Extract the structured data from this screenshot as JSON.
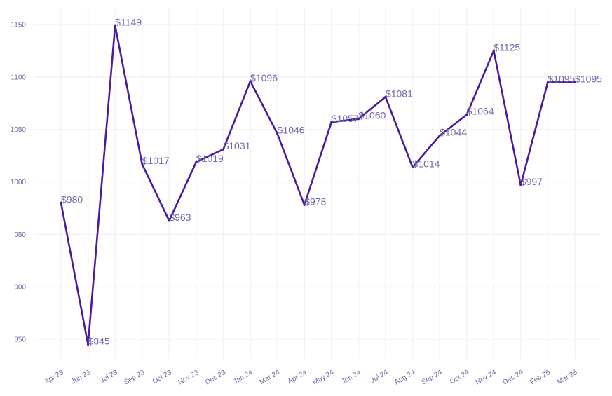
{
  "chart_data": {
    "type": "line",
    "title": "",
    "xlabel": "",
    "ylabel": "",
    "categories": [
      "Apr 23",
      "Jun 23",
      "Jul 23",
      "Sep 23",
      "Oct 23",
      "Nov 23",
      "Dec 23",
      "Jan 24",
      "Mar 24",
      "Apr 24",
      "May 24",
      "Jun 24",
      "Jul 24",
      "Aug 24",
      "Sep 24",
      "Oct 24",
      "Nov 24",
      "Dec 24",
      "Feb 25",
      "Mar 25"
    ],
    "values": [
      980,
      845,
      1149,
      1017,
      963,
      1019,
      1031,
      1096,
      1046,
      978,
      1057,
      1060,
      1081,
      1014,
      1044,
      1064,
      1125,
      997,
      1095,
      1095
    ],
    "data_labels": [
      "$980",
      "$845",
      "$1149",
      "$1017",
      "$963",
      "$1019",
      "$1031",
      "$1096",
      "$1046",
      "$978",
      "$1057",
      "$1060",
      "$1081",
      "$1014",
      "$1044",
      "$1064",
      "$1125",
      "$997",
      "$1095",
      "$1095"
    ],
    "yticks": [
      850,
      900,
      950,
      1000,
      1050,
      1100,
      1150
    ],
    "ylim": [
      830,
      1165
    ],
    "grid": true,
    "legend": "none",
    "line_color": "#4a1aa0",
    "text_color": "#6f6aa8"
  }
}
